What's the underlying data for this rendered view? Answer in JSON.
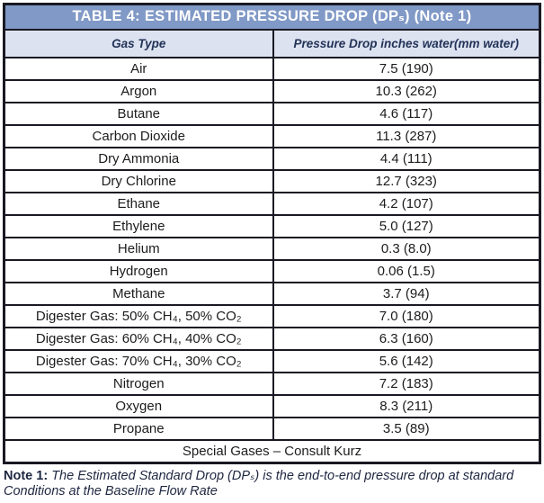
{
  "table": {
    "title": "TABLE 4: ESTIMATED PRESSURE DROP (DPₛ) (Note 1)",
    "columns": [
      "Gas Type",
      "Pressure Drop inches water(mm water)"
    ],
    "rows": [
      [
        "Air",
        "7.5 (190)"
      ],
      [
        "Argon",
        "10.3 (262)"
      ],
      [
        "Butane",
        "4.6 (117)"
      ],
      [
        "Carbon Dioxide",
        "11.3 (287)"
      ],
      [
        "Dry Ammonia",
        "4.4 (111)"
      ],
      [
        "Dry Chlorine",
        "12.7 (323)"
      ],
      [
        "Ethane",
        "4.2 (107)"
      ],
      [
        "Ethylene",
        "5.0 (127)"
      ],
      [
        "Helium",
        "0.3 (8.0)"
      ],
      [
        "Hydrogen",
        "0.06 (1.5)"
      ],
      [
        "Methane",
        "3.7 (94)"
      ],
      [
        "Digester Gas: 50% CH₄, 50% CO₂",
        "7.0 (180)"
      ],
      [
        "Digester Gas: 60% CH₄, 40% CO₂",
        "6.3 (160)"
      ],
      [
        "Digester Gas: 70% CH₄, 30% CO₂",
        "5.6 (142)"
      ],
      [
        "Nitrogen",
        "7.2 (183)"
      ],
      [
        "Oxygen",
        "8.3 (211)"
      ],
      [
        "Propane",
        "3.5 (89)"
      ]
    ],
    "footer": "Special Gases – Consult Kurz"
  },
  "note": {
    "label": "Note 1:",
    "text": "The Estimated Standard Drop (DPₛ) is the end-to-end pressure drop at standard Conditions at the Baseline Flow Rate"
  },
  "colors": {
    "title_bar_bg": "#8099c6",
    "title_text": "#ffffff",
    "header_bg": "#dce2f0",
    "header_text": "#233358",
    "border": "#191923",
    "body_text": "#1c1c1c"
  }
}
